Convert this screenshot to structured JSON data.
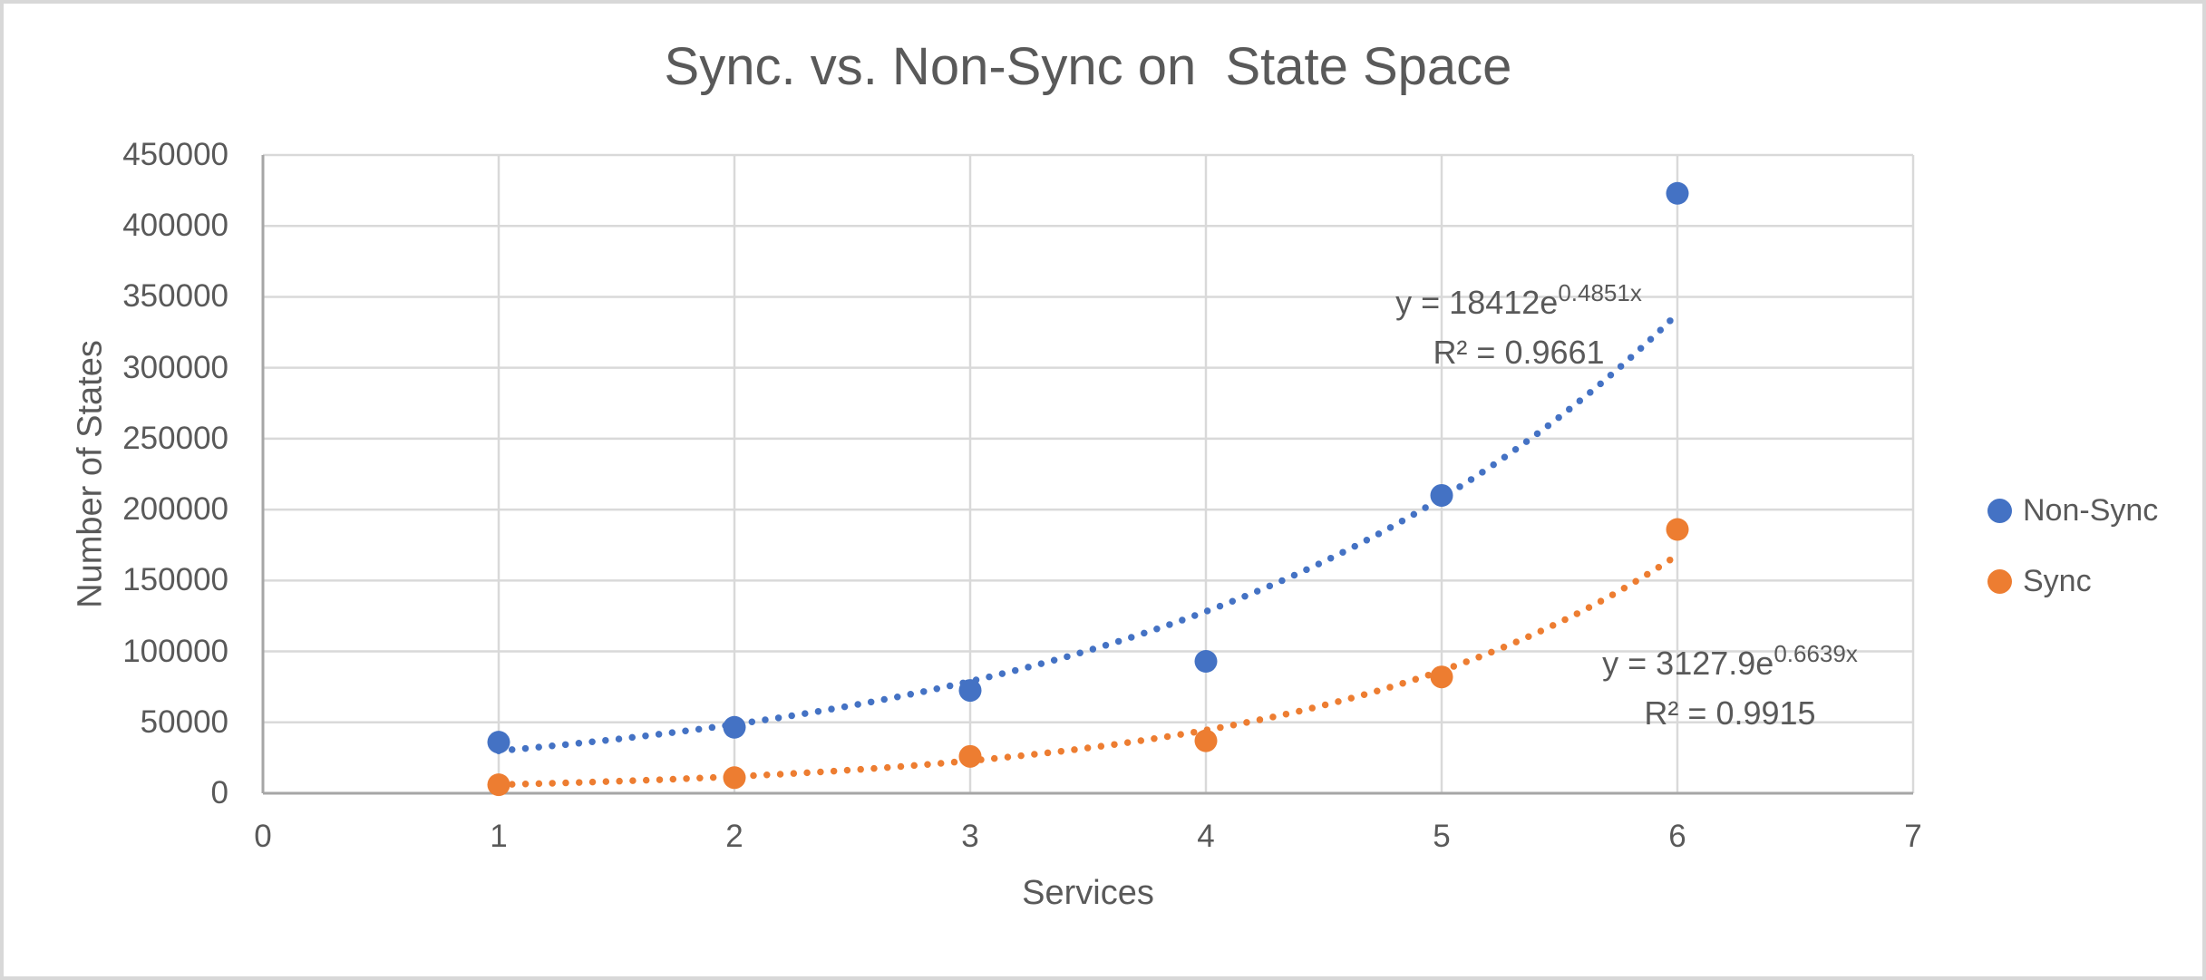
{
  "chart_data": {
    "type": "scatter",
    "title": "Sync. vs. Non-Sync on  State Space",
    "xlabel": "Services",
    "ylabel": "Number of States",
    "xlim": [
      0,
      7
    ],
    "ylim": [
      0,
      450000
    ],
    "x_ticks": [
      0,
      1,
      2,
      3,
      4,
      5,
      6,
      7
    ],
    "y_ticks": [
      0,
      50000,
      100000,
      150000,
      200000,
      250000,
      300000,
      350000,
      400000,
      450000
    ],
    "grid": true,
    "legend_position": "right",
    "x": [
      1,
      2,
      3,
      4,
      5,
      6
    ],
    "series": [
      {
        "name": "Non-Sync",
        "color": "#4472C4",
        "values": [
          36000,
          46500,
          72500,
          93000,
          210000,
          423000
        ],
        "trendline": {
          "type": "exponential",
          "a": 18412,
          "b": 0.4851,
          "x_range": [
            1,
            6
          ],
          "equation_prefix": "y = 18412e",
          "equation_exponent": "0.4851x",
          "r_squared_label": "R² = 0.9661"
        }
      },
      {
        "name": "Sync",
        "color": "#ED7D31",
        "values": [
          6000,
          11000,
          26000,
          37000,
          82000,
          186000
        ],
        "trendline": {
          "type": "exponential",
          "a": 3127.9,
          "b": 0.6639,
          "x_range": [
            1,
            6
          ],
          "equation_prefix": "y = 3127.9e",
          "equation_exponent": "0.6639x",
          "r_squared_label": "R² = 0.9915"
        }
      }
    ]
  },
  "colors": {
    "series_blue": "#4472C4",
    "series_orange": "#ED7D31",
    "text": "#595959",
    "gridline": "#D9D9D9",
    "axis_line": "#A6A6A6",
    "frame_border": "#D8D8D8"
  }
}
